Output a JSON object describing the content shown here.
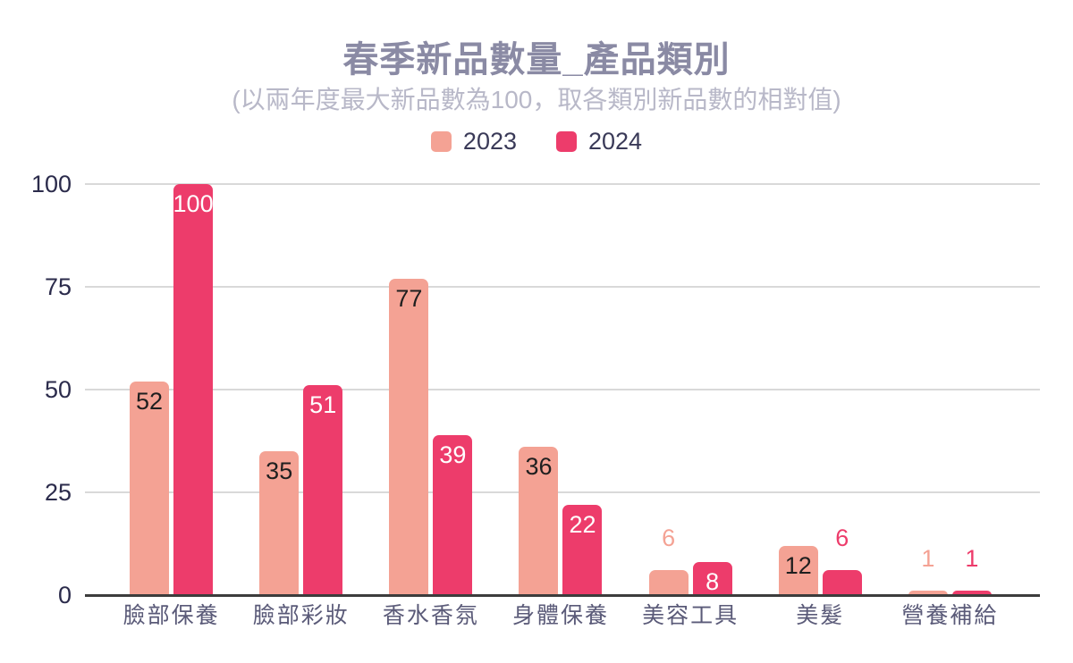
{
  "header": {
    "title": "春季新品數量_產品類別",
    "subtitle": "(以兩年度最大新品數為100，取各類別新品數的相對值)"
  },
  "legend": [
    {
      "label": "2023",
      "color": "#F4A294"
    },
    {
      "label": "2024",
      "color": "#ED3C6B"
    }
  ],
  "colors": {
    "series_2023": "#F4A294",
    "series_2024": "#ED3C6B",
    "title_text": "#8A8AA4",
    "subtitle_text": "#B8B8C8",
    "axis_text": "#2B2B4B",
    "category_text": "#5A5A78",
    "gridline": "#D9D9D9",
    "baseline": "#3C3C3C",
    "value_on_salmon": "#1F1F1F",
    "value_on_crimson": "#FFFFFF"
  },
  "chart_data": {
    "type": "bar",
    "title": "春季新品數量_產品類別",
    "subtitle": "(以兩年度最大新品數為100，取各類別新品數的相對值)",
    "categories": [
      "臉部保養",
      "臉部彩妝",
      "香水香氛",
      "身體保養",
      "美容工具",
      "美髮",
      "營養補給"
    ],
    "series": [
      {
        "name": "2023",
        "color": "#F4A294",
        "values": [
          52,
          35,
          77,
          36,
          6,
          12,
          1
        ]
      },
      {
        "name": "2024",
        "color": "#ED3C6B",
        "values": [
          100,
          51,
          39,
          22,
          8,
          6,
          1
        ]
      }
    ],
    "ylim": [
      0,
      100
    ],
    "yticks": [
      0,
      25,
      50,
      75,
      100
    ],
    "grid": true,
    "legend_position": "top",
    "value_labels": true
  }
}
